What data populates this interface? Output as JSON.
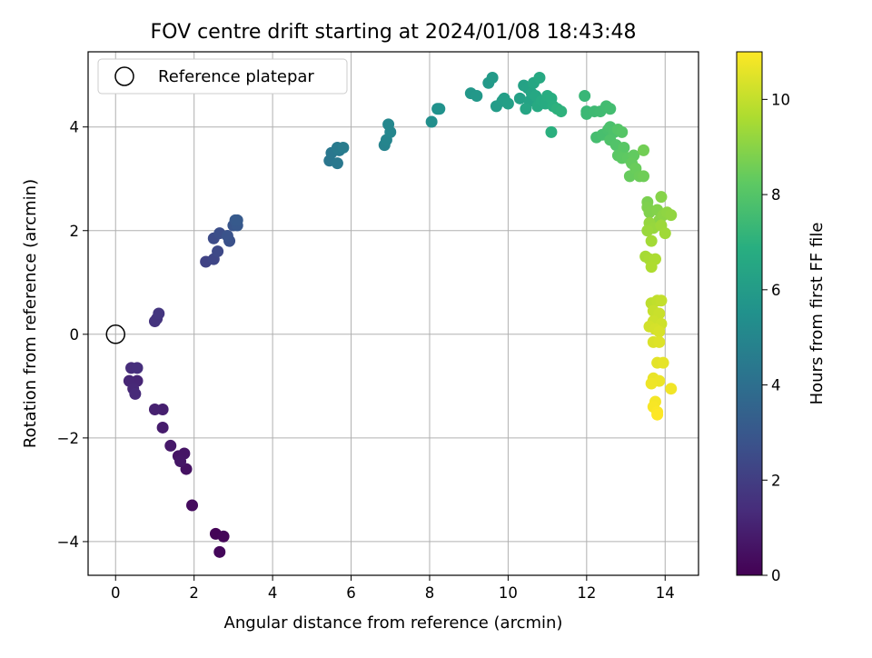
{
  "chart_data": {
    "type": "scatter",
    "title": "FOV centre drift starting at 2024/01/08 18:43:48",
    "xlabel": "Angular distance from reference (arcmin)",
    "ylabel": "Rotation from reference (arcmin)",
    "xlim": [
      -0.7,
      14.85
    ],
    "ylim": [
      -4.65,
      5.45
    ],
    "xticks": [
      0,
      2,
      4,
      6,
      8,
      10,
      12,
      14
    ],
    "yticks": [
      -4,
      -2,
      0,
      2,
      4
    ],
    "xtick_labels": [
      "0",
      "2",
      "4",
      "6",
      "8",
      "10",
      "12",
      "14"
    ],
    "ytick_labels": [
      "−4",
      "−2",
      "0",
      "2",
      "4"
    ],
    "grid": true,
    "legend": {
      "position": "top-left",
      "entry": "Reference platepar",
      "marker": "open-circle"
    },
    "reference_point": {
      "x": 0,
      "y": 0
    },
    "colorbar": {
      "label": "Hours from first FF file",
      "range": [
        0,
        11
      ],
      "ticks": [
        0,
        2,
        4,
        6,
        8,
        10
      ],
      "tick_labels": [
        "0",
        "2",
        "4",
        "6",
        "8",
        "10"
      ],
      "colormap": "viridis"
    },
    "points": [
      [
        2.55,
        -3.85,
        0.1
      ],
      [
        2.75,
        -3.9,
        0.15
      ],
      [
        2.65,
        -4.2,
        0.2
      ],
      [
        1.95,
        -3.3,
        0.35
      ],
      [
        1.8,
        -2.6,
        0.5
      ],
      [
        1.6,
        -2.35,
        0.55
      ],
      [
        1.75,
        -2.3,
        0.6
      ],
      [
        1.65,
        -2.45,
        0.65
      ],
      [
        1.4,
        -2.15,
        0.75
      ],
      [
        1.2,
        -1.8,
        0.85
      ],
      [
        1.2,
        -1.45,
        0.95
      ],
      [
        1.0,
        -1.45,
        1.0
      ],
      [
        0.55,
        -0.9,
        1.15
      ],
      [
        0.35,
        -0.9,
        1.2
      ],
      [
        0.45,
        -1.05,
        1.25
      ],
      [
        0.5,
        -1.15,
        1.3
      ],
      [
        0.4,
        -0.65,
        1.4
      ],
      [
        0.55,
        -0.65,
        1.45
      ],
      [
        1.0,
        0.25,
        1.6
      ],
      [
        1.05,
        0.3,
        1.65
      ],
      [
        1.1,
        0.4,
        1.7
      ],
      [
        2.3,
        1.4,
        2.2
      ],
      [
        2.5,
        1.45,
        2.3
      ],
      [
        2.6,
        1.6,
        2.4
      ],
      [
        2.5,
        1.85,
        2.5
      ],
      [
        2.65,
        1.95,
        2.6
      ],
      [
        2.9,
        1.8,
        2.7
      ],
      [
        2.85,
        1.9,
        2.8
      ],
      [
        3.0,
        2.1,
        2.9
      ],
      [
        3.1,
        2.1,
        3.0
      ],
      [
        3.05,
        2.2,
        3.05
      ],
      [
        3.1,
        2.2,
        3.1
      ],
      [
        5.45,
        3.35,
        4.3
      ],
      [
        5.5,
        3.5,
        4.35
      ],
      [
        5.65,
        3.3,
        4.4
      ],
      [
        5.7,
        3.55,
        4.45
      ],
      [
        5.65,
        3.6,
        4.5
      ],
      [
        5.8,
        3.6,
        4.55
      ],
      [
        6.85,
        3.65,
        4.9
      ],
      [
        6.9,
        3.75,
        4.95
      ],
      [
        7.0,
        3.9,
        5.0
      ],
      [
        6.95,
        4.05,
        5.05
      ],
      [
        8.05,
        4.1,
        5.4
      ],
      [
        8.2,
        4.35,
        5.5
      ],
      [
        8.25,
        4.35,
        5.55
      ],
      [
        9.05,
        4.65,
        5.8
      ],
      [
        9.2,
        4.6,
        5.85
      ],
      [
        9.5,
        4.85,
        5.9
      ],
      [
        9.6,
        4.95,
        5.95
      ],
      [
        9.7,
        4.4,
        6.0
      ],
      [
        9.85,
        4.5,
        6.05
      ],
      [
        9.9,
        4.55,
        6.1
      ],
      [
        10.0,
        4.45,
        6.15
      ],
      [
        10.3,
        4.55,
        6.2
      ],
      [
        10.4,
        4.8,
        6.25
      ],
      [
        10.5,
        4.75,
        6.3
      ],
      [
        10.55,
        4.5,
        6.35
      ],
      [
        10.6,
        4.65,
        6.4
      ],
      [
        10.45,
        4.35,
        6.45
      ],
      [
        10.65,
        4.85,
        6.5
      ],
      [
        10.7,
        4.6,
        6.55
      ],
      [
        10.8,
        4.95,
        6.6
      ],
      [
        10.75,
        4.4,
        6.65
      ],
      [
        10.85,
        4.5,
        6.7
      ],
      [
        10.95,
        4.45,
        6.75
      ],
      [
        11.0,
        4.6,
        6.8
      ],
      [
        11.1,
        4.55,
        6.85
      ],
      [
        11.15,
        4.4,
        6.9
      ],
      [
        11.1,
        3.9,
        6.95
      ],
      [
        11.25,
        4.35,
        7.0
      ],
      [
        11.35,
        4.3,
        7.05
      ],
      [
        11.95,
        4.6,
        7.3
      ],
      [
        12.0,
        4.3,
        7.35
      ],
      [
        12.0,
        4.25,
        7.4
      ],
      [
        12.2,
        4.3,
        7.45
      ],
      [
        12.35,
        4.3,
        7.5
      ],
      [
        12.5,
        4.4,
        7.55
      ],
      [
        12.6,
        4.35,
        7.6
      ],
      [
        12.25,
        3.8,
        7.65
      ],
      [
        12.4,
        3.85,
        7.7
      ],
      [
        12.55,
        3.95,
        7.75
      ],
      [
        12.6,
        4.0,
        7.8
      ],
      [
        12.7,
        3.9,
        7.85
      ],
      [
        12.6,
        3.75,
        7.9
      ],
      [
        12.75,
        3.65,
        7.95
      ],
      [
        12.8,
        3.95,
        8.0
      ],
      [
        12.9,
        3.9,
        8.05
      ],
      [
        12.95,
        3.6,
        8.1
      ],
      [
        12.8,
        3.45,
        8.15
      ],
      [
        12.9,
        3.4,
        8.2
      ],
      [
        13.05,
        3.4,
        8.25
      ],
      [
        13.2,
        3.45,
        8.3
      ],
      [
        13.15,
        3.3,
        8.35
      ],
      [
        13.1,
        3.05,
        8.4
      ],
      [
        13.25,
        3.2,
        8.45
      ],
      [
        13.35,
        3.05,
        8.5
      ],
      [
        13.45,
        3.05,
        8.55
      ],
      [
        13.45,
        3.55,
        8.6
      ],
      [
        13.55,
        2.55,
        8.75
      ],
      [
        13.55,
        2.45,
        8.8
      ],
      [
        13.6,
        2.35,
        8.85
      ],
      [
        13.8,
        2.4,
        8.9
      ],
      [
        13.9,
        2.65,
        8.95
      ],
      [
        13.85,
        2.2,
        9.0
      ],
      [
        13.95,
        2.3,
        9.05
      ],
      [
        14.05,
        2.35,
        9.1
      ],
      [
        14.15,
        2.3,
        9.15
      ],
      [
        13.6,
        2.15,
        9.2
      ],
      [
        13.7,
        2.05,
        9.25
      ],
      [
        13.55,
        2.0,
        9.3
      ],
      [
        13.9,
        2.1,
        9.35
      ],
      [
        14.0,
        1.95,
        9.4
      ],
      [
        13.65,
        1.8,
        9.45
      ],
      [
        13.5,
        1.5,
        9.5
      ],
      [
        13.6,
        1.45,
        9.55
      ],
      [
        13.75,
        1.45,
        9.6
      ],
      [
        13.65,
        1.3,
        9.65
      ],
      [
        13.65,
        0.6,
        9.9
      ],
      [
        13.8,
        0.65,
        9.95
      ],
      [
        13.9,
        0.65,
        10.0
      ],
      [
        13.7,
        0.45,
        10.05
      ],
      [
        13.85,
        0.4,
        10.1
      ],
      [
        13.7,
        0.25,
        10.15
      ],
      [
        13.9,
        0.2,
        10.2
      ],
      [
        13.6,
        0.15,
        10.25
      ],
      [
        13.75,
        0.1,
        10.3
      ],
      [
        13.85,
        0.05,
        10.35
      ],
      [
        13.7,
        -0.15,
        10.4
      ],
      [
        13.85,
        -0.15,
        10.45
      ],
      [
        13.8,
        -0.55,
        10.55
      ],
      [
        13.95,
        -0.55,
        10.6
      ],
      [
        13.7,
        -0.85,
        10.65
      ],
      [
        13.85,
        -0.9,
        10.7
      ],
      [
        13.65,
        -0.95,
        10.75
      ],
      [
        14.15,
        -1.05,
        10.8
      ],
      [
        13.75,
        -1.3,
        10.85
      ],
      [
        13.7,
        -1.4,
        10.9
      ],
      [
        13.8,
        -1.5,
        10.95
      ],
      [
        13.8,
        -1.55,
        11.0
      ]
    ]
  }
}
